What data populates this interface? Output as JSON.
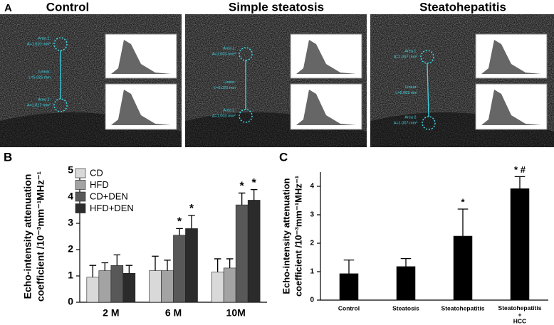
{
  "panel_a": {
    "label": "A",
    "images": [
      {
        "title": "Control",
        "labels": [
          "Area 1:",
          "A=1.010 mm²",
          "Linear:",
          "L=5.025 mm",
          "Area 2:",
          "A=1.017 mm²"
        ]
      },
      {
        "title": "Simple steatosis",
        "labels": [
          "Area 1:",
          "A=1.003 mm²",
          "Linear:",
          "L=5.020 mm",
          "Area 2:",
          "A=1.003 mm²"
        ]
      },
      {
        "title": "Steatohepatitis",
        "labels": [
          "Area 1:",
          "A=1.007 mm²",
          "Linear:",
          "L=5.003 mm",
          "Area 2:",
          "A=1.007 mm²"
        ]
      }
    ]
  },
  "chart_data": [
    {
      "type": "bar",
      "panel": "B",
      "ylabel": [
        "Echo-intensity attenuation",
        "coefficient /10⁻³mm⁻¹MHz⁻¹"
      ],
      "categories": [
        "2 M",
        "6 M",
        "10M"
      ],
      "series": [
        {
          "name": "CD",
          "color": "#d9d9d9",
          "values": [
            0.95,
            1.2,
            1.15
          ],
          "errors": [
            0.45,
            0.55,
            0.5
          ],
          "markers": [
            null,
            null,
            null
          ]
        },
        {
          "name": "HFD",
          "color": "#a3a3a3",
          "values": [
            1.2,
            1.2,
            1.3
          ],
          "errors": [
            0.3,
            0.4,
            0.35
          ],
          "markers": [
            null,
            null,
            null
          ]
        },
        {
          "name": "CD+DEN",
          "color": "#585858",
          "values": [
            1.4,
            2.55,
            3.7
          ],
          "errors": [
            0.4,
            0.25,
            0.45
          ],
          "markers": [
            null,
            "*",
            "*"
          ]
        },
        {
          "name": "HFD+DEN",
          "color": "#2b2b2b",
          "values": [
            1.1,
            2.8,
            3.88
          ],
          "errors": [
            0.3,
            0.5,
            0.4
          ],
          "markers": [
            null,
            "*",
            "*"
          ]
        }
      ],
      "ylim": [
        0,
        5
      ],
      "yticks": [
        0,
        1,
        2,
        3,
        4,
        5
      ],
      "legend": "upper left"
    },
    {
      "type": "bar",
      "panel": "C",
      "ylabel": [
        "Echo-intensity attenuation",
        "coefficient /10⁻³mm⁻¹MHz⁻¹"
      ],
      "categories": [
        "Control",
        "Steatosis",
        "Steatohepatitis",
        "Steatohepatitis\n+\nHCC"
      ],
      "series": [
        {
          "color": "#000000",
          "values": [
            0.93,
            1.18,
            2.25,
            3.92
          ],
          "errors": [
            0.48,
            0.28,
            0.95,
            0.42
          ],
          "markers": [
            null,
            null,
            "*",
            "* #"
          ]
        }
      ],
      "ylim": [
        0,
        4.5
      ],
      "yticks": [
        0,
        1,
        2,
        3,
        4
      ]
    }
  ]
}
